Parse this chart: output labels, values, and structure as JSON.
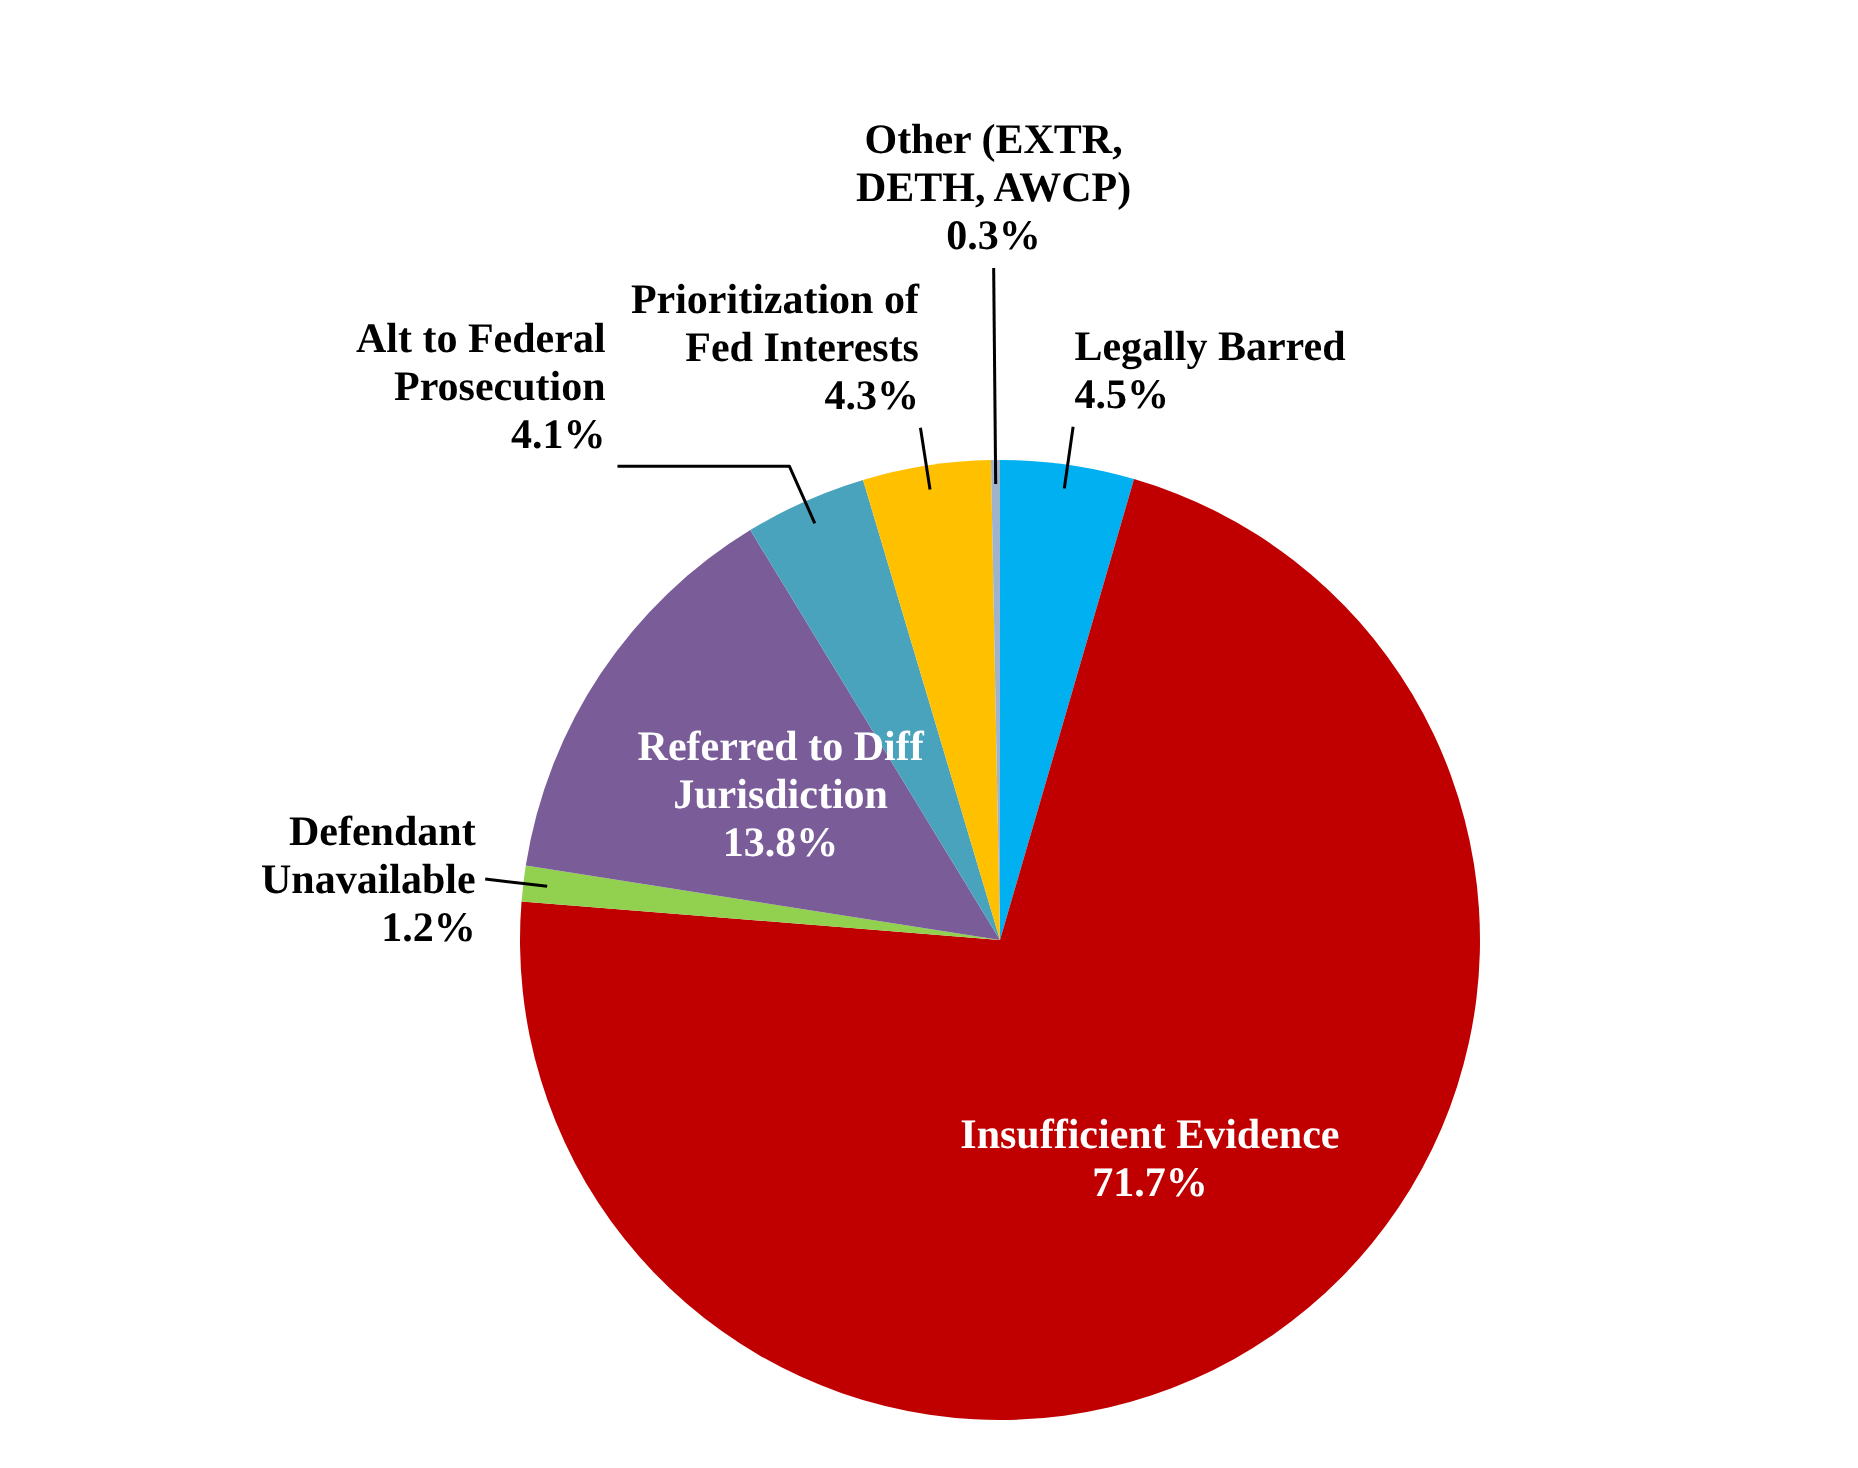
{
  "chart_data": {
    "type": "pie",
    "categories": [
      "Legally Barred",
      "Insufficient Evidence",
      "Defendant Unavailable",
      "Referred to Diff Jurisdiction",
      "Alt to Federal Prosecution",
      "Prioritization of Fed Interests",
      "Other (EXTR, DETH, AWCP)"
    ],
    "values": [
      4.5,
      71.7,
      1.2,
      13.8,
      4.1,
      4.3,
      0.3
    ],
    "value_labels": [
      "4.5%",
      "71.7%",
      "1.2%",
      "13.8%",
      "4.1%",
      "4.3%",
      "0.3%"
    ],
    "colors": [
      "#00b0f0",
      "#c00000",
      "#92d050",
      "#7a5c99",
      "#4aa3bd",
      "#ffc000",
      "#9fb4cc"
    ]
  }
}
